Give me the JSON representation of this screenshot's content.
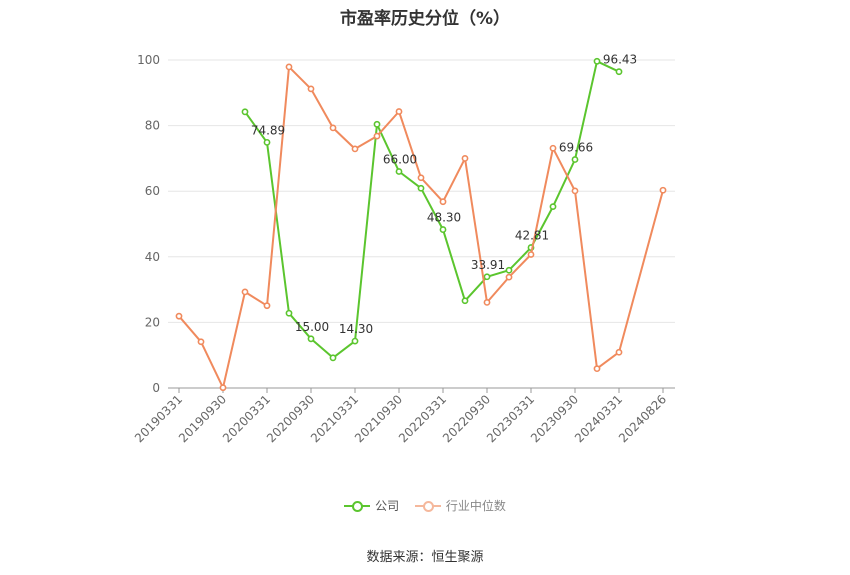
{
  "chart_data": {
    "type": "line",
    "title": "市盈率历史分位（%）",
    "categories": [
      "20190331",
      "20190630",
      "20190930",
      "20191231",
      "20200331",
      "20200630",
      "20200930",
      "20201231",
      "20210331",
      "20210630",
      "20210930",
      "20211231",
      "20220331",
      "20220630",
      "20220930",
      "20221231",
      "20230331",
      "20230630",
      "20230930",
      "20231231",
      "20240331",
      "20240630",
      "20240826"
    ],
    "tick_labels": [
      "20190331",
      "20190930",
      "20200331",
      "20200930",
      "20210331",
      "20210930",
      "20220331",
      "20220930",
      "20230331",
      "20230930",
      "20240331",
      "20240826"
    ],
    "ylim": [
      0,
      100
    ],
    "yticks": [
      0,
      20,
      40,
      60,
      80,
      100
    ],
    "grid": true,
    "legend_position": "bottom",
    "series": [
      {
        "name": "公司",
        "color": "#5bc52e",
        "values": [
          null,
          null,
          null,
          84.2,
          74.89,
          22.8,
          15.0,
          9.2,
          14.3,
          80.4,
          66.0,
          60.9,
          48.3,
          26.6,
          33.91,
          35.9,
          42.81,
          55.3,
          69.66,
          99.6,
          96.43,
          null,
          null
        ]
      },
      {
        "name": "行业中位数",
        "color": "#f08a5d",
        "values": [
          21.9,
          14.1,
          0.1,
          29.3,
          25.1,
          97.9,
          91.2,
          79.3,
          72.9,
          76.8,
          84.3,
          64.1,
          56.8,
          70.0,
          26.1,
          33.8,
          40.7,
          73.1,
          60.1,
          5.9,
          10.9,
          null,
          60.3
        ]
      }
    ],
    "data_labels": [
      {
        "series": 0,
        "index": 4,
        "text": "74.89"
      },
      {
        "series": 0,
        "index": 6,
        "text": "15.00"
      },
      {
        "series": 0,
        "index": 8,
        "text": "14.30"
      },
      {
        "series": 0,
        "index": 10,
        "text": "66.00"
      },
      {
        "series": 0,
        "index": 12,
        "text": "48.30"
      },
      {
        "series": 0,
        "index": 14,
        "text": "33.91"
      },
      {
        "series": 0,
        "index": 16,
        "text": "42.81"
      },
      {
        "series": 0,
        "index": 18,
        "text": "69.66"
      },
      {
        "series": 0,
        "index": 20,
        "text": "96.43"
      }
    ]
  },
  "legend": {
    "company_label": "公司",
    "industry_label": "行业中位数"
  },
  "source": "数据来源：恒生聚源"
}
